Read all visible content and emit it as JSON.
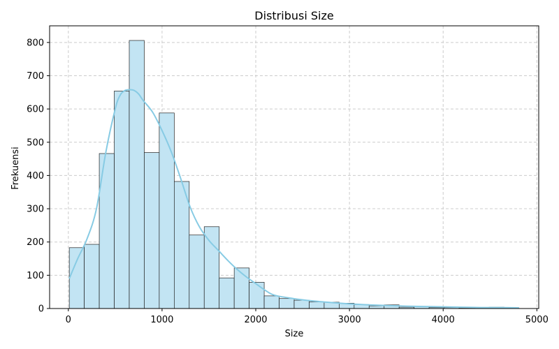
{
  "chart_data": {
    "type": "bar",
    "subtype": "histogram",
    "title": "Distribusi Size",
    "xlabel": "Size",
    "ylabel": "Frekuensi",
    "xlim": [
      -200,
      5020
    ],
    "ylim": [
      0,
      850
    ],
    "xticks": [
      0,
      1000,
      2000,
      3000,
      4000,
      5000
    ],
    "yticks": [
      0,
      100,
      200,
      300,
      400,
      500,
      600,
      700,
      800
    ],
    "grid": true,
    "bar_color": "#c2e4f3",
    "kde_color": "#87cbe4",
    "edge_color": "#222222",
    "bins": [
      {
        "x0": 10,
        "x1": 170,
        "value": 183
      },
      {
        "x0": 170,
        "x1": 330,
        "value": 193
      },
      {
        "x0": 330,
        "x1": 490,
        "value": 466
      },
      {
        "x0": 490,
        "x1": 650,
        "value": 654
      },
      {
        "x0": 650,
        "x1": 810,
        "value": 806
      },
      {
        "x0": 810,
        "x1": 970,
        "value": 469
      },
      {
        "x0": 970,
        "x1": 1130,
        "value": 588
      },
      {
        "x0": 1130,
        "x1": 1290,
        "value": 382
      },
      {
        "x0": 1290,
        "x1": 1450,
        "value": 221
      },
      {
        "x0": 1450,
        "x1": 1610,
        "value": 246
      },
      {
        "x0": 1610,
        "x1": 1770,
        "value": 92
      },
      {
        "x0": 1770,
        "x1": 1930,
        "value": 122
      },
      {
        "x0": 1930,
        "x1": 2090,
        "value": 79
      },
      {
        "x0": 2090,
        "x1": 2250,
        "value": 38
      },
      {
        "x0": 2250,
        "x1": 2410,
        "value": 30
      },
      {
        "x0": 2410,
        "x1": 2570,
        "value": 25
      },
      {
        "x0": 2570,
        "x1": 2730,
        "value": 20
      },
      {
        "x0": 2730,
        "x1": 2890,
        "value": 19
      },
      {
        "x0": 2890,
        "x1": 3050,
        "value": 16
      },
      {
        "x0": 3050,
        "x1": 3210,
        "value": 12
      },
      {
        "x0": 3210,
        "x1": 3370,
        "value": 8
      },
      {
        "x0": 3370,
        "x1": 3530,
        "value": 11
      },
      {
        "x0": 3530,
        "x1": 3690,
        "value": 4
      },
      {
        "x0": 3690,
        "x1": 3850,
        "value": 6
      },
      {
        "x0": 3850,
        "x1": 4010,
        "value": 3
      },
      {
        "x0": 4010,
        "x1": 4170,
        "value": 3
      },
      {
        "x0": 4170,
        "x1": 4330,
        "value": 1
      },
      {
        "x0": 4330,
        "x1": 4490,
        "value": 2
      },
      {
        "x0": 4490,
        "x1": 4650,
        "value": 4
      },
      {
        "x0": 4650,
        "x1": 4810,
        "value": 1
      }
    ],
    "kde": {
      "x": [
        10,
        100,
        200,
        300,
        400,
        500,
        550,
        600,
        650,
        700,
        750,
        800,
        900,
        1000,
        1100,
        1200,
        1300,
        1400,
        1500,
        1600,
        1700,
        1800,
        1900,
        2000,
        2100,
        2200,
        2400,
        2600,
        2800,
        3000,
        3200,
        3400,
        3600,
        3800,
        4000,
        4200,
        4400,
        4600,
        4810
      ],
      "y": [
        90,
        150,
        210,
        300,
        470,
        600,
        640,
        655,
        658,
        656,
        645,
        625,
        590,
        535,
        470,
        390,
        305,
        245,
        205,
        175,
        145,
        118,
        95,
        75,
        55,
        40,
        30,
        23,
        18,
        14,
        11,
        9,
        7,
        6,
        5,
        4,
        3,
        3,
        2
      ]
    }
  }
}
